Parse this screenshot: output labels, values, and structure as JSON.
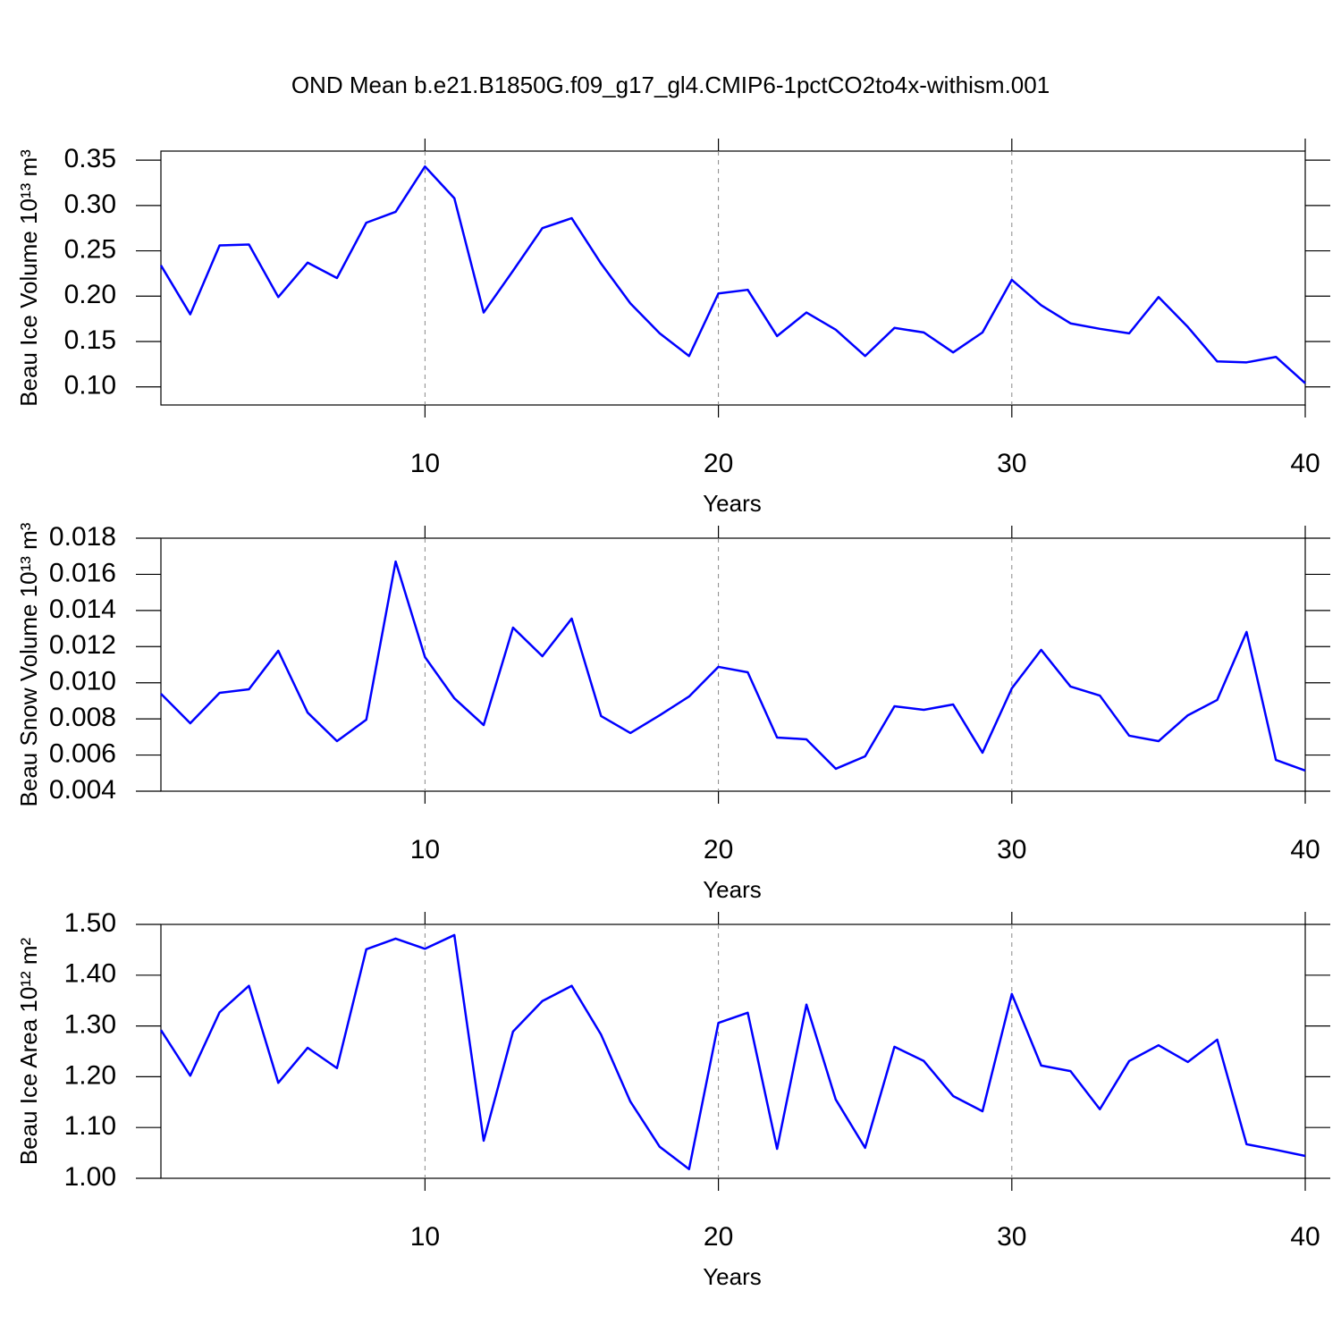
{
  "title": "OND Mean b.e21.B1850G.f09_g17_gl4.CMIP6-1pctCO2to4x-withism.001",
  "chart_data": [
    {
      "type": "line",
      "xlabel": "Years",
      "ylabel": "Beau Ice Volume 10¹³ m³",
      "x": [
        1,
        2,
        3,
        4,
        5,
        6,
        7,
        8,
        9,
        10,
        11,
        12,
        13,
        14,
        15,
        16,
        17,
        18,
        19,
        20,
        21,
        22,
        23,
        24,
        25,
        26,
        27,
        28,
        29,
        30,
        31,
        32,
        33,
        34,
        35,
        36,
        37,
        38,
        39,
        40
      ],
      "series": [
        {
          "color": "#0000ff",
          "values": [
            0.234,
            0.18,
            0.256,
            0.257,
            0.199,
            0.237,
            0.22,
            0.281,
            0.293,
            0.343,
            0.308,
            0.182,
            0.228,
            0.275,
            0.286,
            0.236,
            0.192,
            0.159,
            0.134,
            0.203,
            0.207,
            0.156,
            0.182,
            0.163,
            0.134,
            0.165,
            0.16,
            0.138,
            0.16,
            0.218,
            0.19,
            0.17,
            0.164,
            0.159,
            0.199,
            0.166,
            0.128,
            0.127,
            0.133,
            0.104
          ]
        }
      ],
      "xlim": [
        1,
        40
      ],
      "ylim": [
        0.08,
        0.36
      ],
      "xticks": [
        10,
        20,
        30,
        40
      ],
      "yticks": [
        {
          "value": 0.1,
          "label": "0.10"
        },
        {
          "value": 0.15,
          "label": "0.15"
        },
        {
          "value": 0.2,
          "label": "0.20"
        },
        {
          "value": 0.25,
          "label": "0.25"
        },
        {
          "value": 0.3,
          "label": "0.30"
        },
        {
          "value": 0.35,
          "label": "0.35"
        }
      ],
      "grid": true
    },
    {
      "type": "line",
      "xlabel": "Years",
      "ylabel": "Beau Snow Volume 10¹³ m³",
      "x": [
        1,
        2,
        3,
        4,
        5,
        6,
        7,
        8,
        9,
        10,
        11,
        12,
        13,
        14,
        15,
        16,
        17,
        18,
        19,
        20,
        21,
        22,
        23,
        24,
        25,
        26,
        27,
        28,
        29,
        30,
        31,
        32,
        33,
        34,
        35,
        36,
        37,
        38,
        39,
        40
      ],
      "series": [
        {
          "color": "#0000ff",
          "values": [
            0.00939,
            0.00776,
            0.00944,
            0.00964,
            0.01177,
            0.00835,
            0.00677,
            0.00796,
            0.01671,
            0.01142,
            0.00914,
            0.00766,
            0.01305,
            0.01147,
            0.01355,
            0.00816,
            0.00722,
            0.0082,
            0.00924,
            0.01088,
            0.01058,
            0.00697,
            0.00687,
            0.00524,
            0.00593,
            0.0087,
            0.0085,
            0.0088,
            0.00613,
            0.00969,
            0.01182,
            0.00979,
            0.00929,
            0.00707,
            0.00677,
            0.0082,
            0.00905,
            0.01281,
            0.00573,
            0.00514
          ]
        }
      ],
      "xlim": [
        1,
        40
      ],
      "ylim": [
        0.004,
        0.018
      ],
      "xticks": [
        10,
        20,
        30,
        40
      ],
      "yticks": [
        0.004,
        0.006,
        0.008,
        {
          "value": 0.01,
          "label": "0.010"
        },
        0.012,
        0.014,
        0.016,
        0.018
      ],
      "grid": true
    },
    {
      "type": "line",
      "xlabel": "Years",
      "ylabel": "Beau Ice Area 10¹² m²",
      "x": [
        1,
        2,
        3,
        4,
        5,
        6,
        7,
        8,
        9,
        10,
        11,
        12,
        13,
        14,
        15,
        16,
        17,
        18,
        19,
        20,
        21,
        22,
        23,
        24,
        25,
        26,
        27,
        28,
        29,
        30,
        31,
        32,
        33,
        34,
        35,
        36,
        37,
        38,
        39,
        40
      ],
      "series": [
        {
          "color": "#0000ff",
          "values": [
            1.292,
            1.202,
            1.327,
            1.379,
            1.188,
            1.257,
            1.217,
            1.451,
            1.472,
            1.452,
            1.479,
            1.074,
            1.289,
            1.349,
            1.379,
            1.283,
            1.151,
            1.062,
            1.018,
            1.306,
            1.326,
            1.058,
            1.342,
            1.155,
            1.06,
            1.259,
            1.231,
            1.162,
            1.132,
            1.363,
            1.222,
            1.211,
            1.136,
            1.231,
            1.262,
            1.229,
            1.273,
            1.067,
            1.056,
            1.044
          ]
        }
      ],
      "xlim": [
        1,
        40
      ],
      "ylim": [
        1.0,
        1.5
      ],
      "xticks": [
        10,
        20,
        30,
        40
      ],
      "yticks": [
        {
          "value": 1.0,
          "label": "1.00"
        },
        {
          "value": 1.1,
          "label": "1.10"
        },
        {
          "value": 1.2,
          "label": "1.20"
        },
        {
          "value": 1.3,
          "label": "1.30"
        },
        {
          "value": 1.4,
          "label": "1.40"
        },
        {
          "value": 1.5,
          "label": "1.50"
        }
      ],
      "grid": true
    }
  ]
}
